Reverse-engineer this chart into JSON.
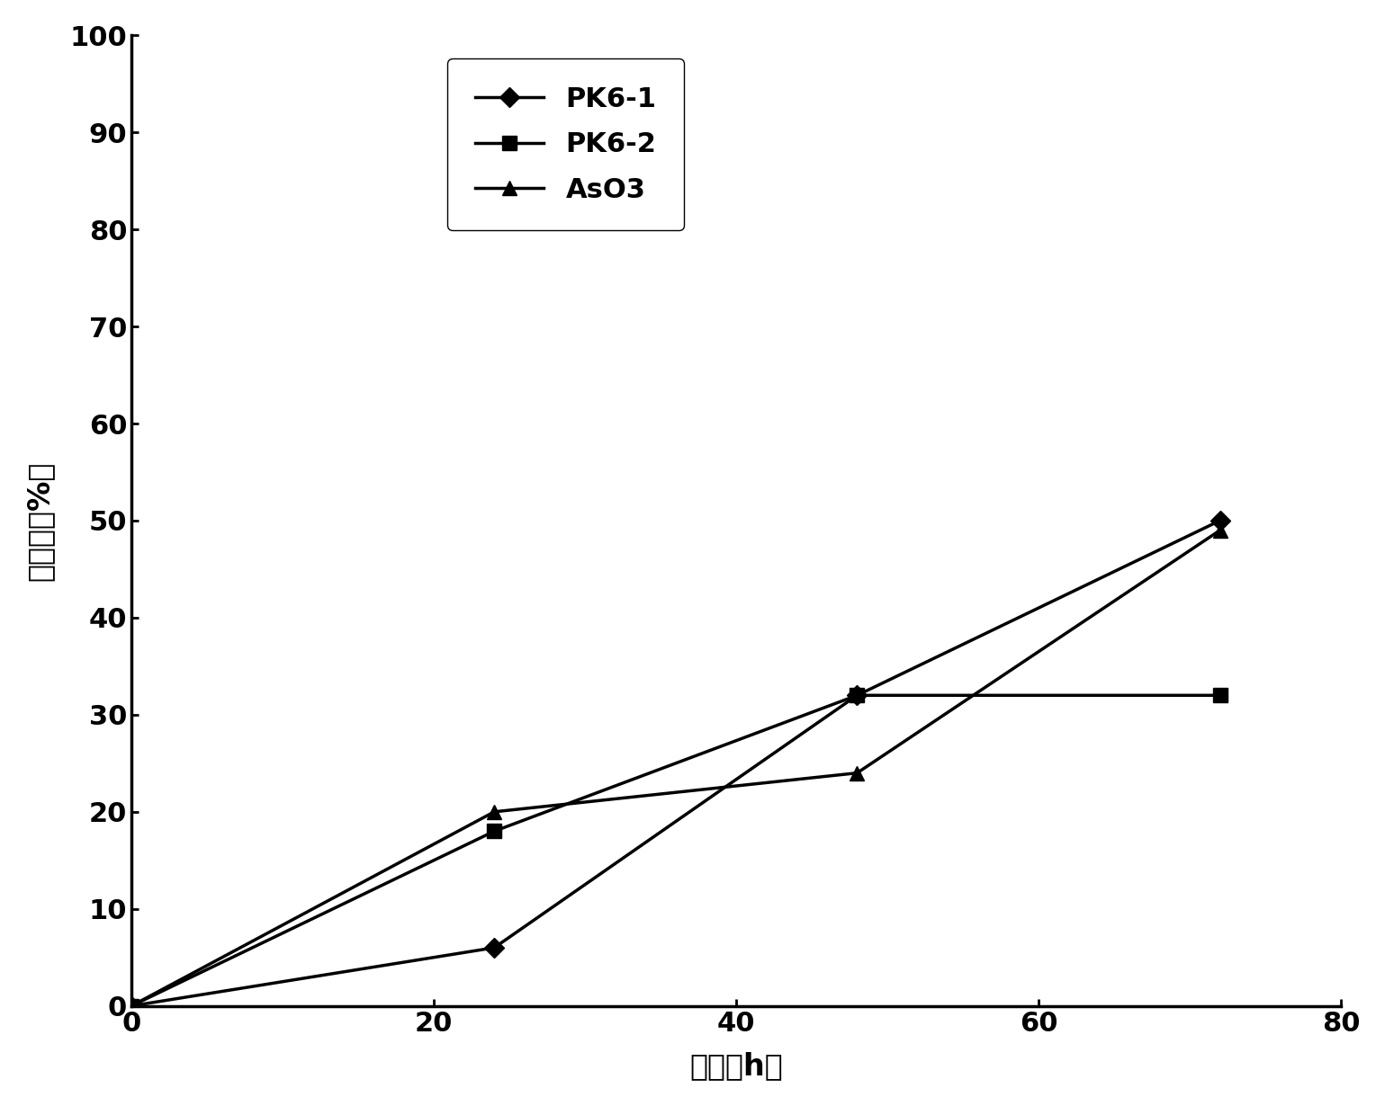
{
  "series": [
    {
      "label": "PK6-1",
      "x": [
        0,
        24,
        48,
        72
      ],
      "y": [
        0,
        6,
        32,
        50
      ],
      "color": "#000000",
      "marker": "D",
      "markersize": 11,
      "linewidth": 2.5
    },
    {
      "label": "PK6-2",
      "x": [
        0,
        24,
        48,
        72
      ],
      "y": [
        0,
        18,
        32,
        32
      ],
      "color": "#000000",
      "marker": "s",
      "markersize": 11,
      "linewidth": 2.5
    },
    {
      "label": "AsO3",
      "x": [
        0,
        24,
        48,
        72
      ],
      "y": [
        0,
        20,
        24,
        49
      ],
      "color": "#000000",
      "marker": "^",
      "markersize": 11,
      "linewidth": 2.5
    }
  ],
  "xlabel": "时间（h）",
  "ylabel": "抑制率（%）",
  "xlim": [
    0,
    80
  ],
  "ylim": [
    0,
    100
  ],
  "xticks": [
    0,
    20,
    40,
    60,
    80
  ],
  "yticks": [
    0,
    10,
    20,
    30,
    40,
    50,
    60,
    70,
    80,
    90,
    100
  ],
  "background_color": "#ffffff",
  "figsize": [
    15.39,
    12.3
  ],
  "dpi": 100,
  "tick_fontsize": 22,
  "label_fontsize": 24,
  "legend_fontsize": 22
}
